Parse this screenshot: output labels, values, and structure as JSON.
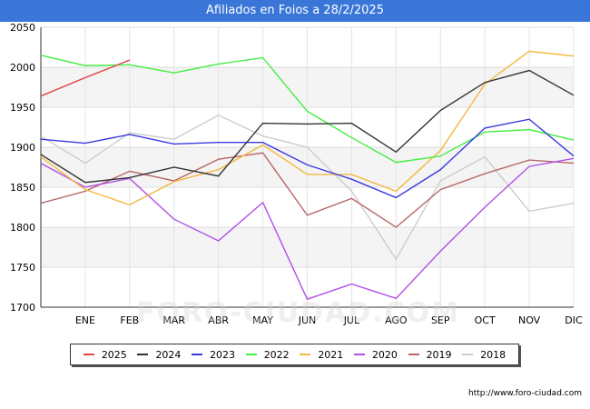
{
  "chart_data": {
    "type": "line",
    "title": "Afiliados en Foios a 28/2/2025",
    "categories": [
      "",
      "ENE",
      "FEB",
      "MAR",
      "ABR",
      "MAY",
      "JUN",
      "JUL",
      "AGO",
      "SEP",
      "OCT",
      "NOV",
      "DIC"
    ],
    "ylim": [
      1700,
      2050
    ],
    "yticks": [
      1700,
      1750,
      1800,
      1850,
      1900,
      1950,
      2000,
      2050
    ],
    "grid": true,
    "legend_position": "bottom",
    "series": [
      {
        "name": "2025",
        "color": "#e04848",
        "values": [
          1964,
          1987,
          2009,
          null,
          null,
          null,
          null,
          null,
          null,
          null,
          null,
          null,
          null
        ]
      },
      {
        "name": "2024",
        "color": "#333333",
        "values": [
          1891,
          1856,
          1862,
          1875,
          1864,
          1930,
          1929,
          1930,
          1894,
          1946,
          1981,
          1996,
          1965
        ]
      },
      {
        "name": "2023",
        "color": "#3a3ae0",
        "values": [
          1910,
          1905,
          1916,
          1904,
          1906,
          1906,
          1878,
          1860,
          1837,
          1872,
          1924,
          1935,
          1889
        ]
      },
      {
        "name": "2022",
        "color": "#44ee44",
        "values": [
          2015,
          2002,
          2003,
          1993,
          2004,
          2012,
          1945,
          1912,
          1881,
          1889,
          1919,
          1922,
          1909
        ]
      },
      {
        "name": "2021",
        "color": "#f4b840",
        "values": [
          1888,
          1847,
          1828,
          1857,
          1872,
          1903,
          1866,
          1866,
          1845,
          1896,
          1979,
          2020,
          2014
        ]
      },
      {
        "name": "2020",
        "color": "#b050e6",
        "values": [
          1880,
          1850,
          1861,
          1810,
          1783,
          1831,
          1710,
          1729,
          1711,
          1770,
          1825,
          1876,
          1886
        ]
      },
      {
        "name": "2019",
        "color": "#b86868",
        "values": [
          1830,
          1845,
          1870,
          1858,
          1885,
          1893,
          1815,
          1836,
          1800,
          1847,
          1867,
          1884,
          1880
        ]
      },
      {
        "name": "2018",
        "color": "#cccccc",
        "values": [
          1914,
          1880,
          1918,
          1910,
          1940,
          1914,
          1900,
          1845,
          1760,
          1858,
          1888,
          1820,
          1830
        ]
      }
    ]
  },
  "source": "http://www.foro-ciudad.com",
  "watermark": "FORO-CIUDAD.COM"
}
